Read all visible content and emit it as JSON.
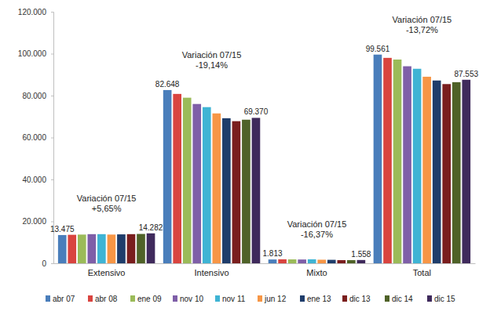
{
  "chart_data": {
    "type": "bar",
    "categories": [
      "Extensivo",
      "Intensivo",
      "Mixto",
      "Total"
    ],
    "series": [
      {
        "name": "abr 07",
        "color": "#4a7ebb",
        "values": [
          13475,
          82648,
          1813,
          99561
        ],
        "value_labels": [
          "13.475",
          "82.648",
          "1.813",
          "99.561"
        ]
      },
      {
        "name": "abr 08",
        "color": "#d9443f",
        "values": [
          13600,
          80800,
          1900,
          98000
        ]
      },
      {
        "name": "ene 09",
        "color": "#9bbb59",
        "values": [
          13700,
          79000,
          1850,
          97200
        ]
      },
      {
        "name": "nov 10",
        "color": "#7f5fa8",
        "values": [
          13900,
          76000,
          1800,
          94000
        ]
      },
      {
        "name": "nov 11",
        "color": "#3fb4d4",
        "values": [
          13900,
          74500,
          1900,
          92800
        ]
      },
      {
        "name": "jun 12",
        "color": "#f79646",
        "values": [
          13700,
          71500,
          1700,
          89000
        ]
      },
      {
        "name": "ene 13",
        "color": "#1f3d6b",
        "values": [
          13800,
          69200,
          1650,
          87200
        ]
      },
      {
        "name": "dic 13",
        "color": "#7a1e1e",
        "values": [
          13900,
          67800,
          1500,
          85500
        ]
      },
      {
        "name": "dic 14",
        "color": "#4f6228",
        "values": [
          14000,
          68500,
          1500,
          86400
        ]
      },
      {
        "name": "dic 15",
        "color": "#3f2a5c",
        "values": [
          14282,
          69370,
          1558,
          87553
        ],
        "value_labels": [
          "14.282",
          "69.370",
          "1.558",
          "87.553"
        ]
      }
    ],
    "ylim": [
      0,
      120000
    ],
    "yticks": [
      0,
      {
        "value": 20000,
        "label": "20.000"
      },
      {
        "value": 40000,
        "label": "40.000"
      },
      {
        "value": 60000,
        "label": "60.000"
      },
      {
        "value": 80000,
        "label": "80.000"
      },
      {
        "value": 100000,
        "label": "100.000"
      },
      {
        "value": 120000,
        "label": "120.000"
      }
    ],
    "grid": false,
    "legend": "bottom",
    "data_labels": true,
    "annotations": [
      {
        "category": "Extensivo",
        "lines": [
          "Variación 07/15",
          "+5,65%"
        ]
      },
      {
        "category": "Intensivo",
        "lines": [
          "Variación 07/15",
          "-19,14%"
        ]
      },
      {
        "category": "Mixto",
        "lines": [
          "Variación 07/15",
          "-16,37%"
        ]
      },
      {
        "category": "Total",
        "lines": [
          "Variación 07/15",
          "-13,72%"
        ]
      }
    ]
  }
}
